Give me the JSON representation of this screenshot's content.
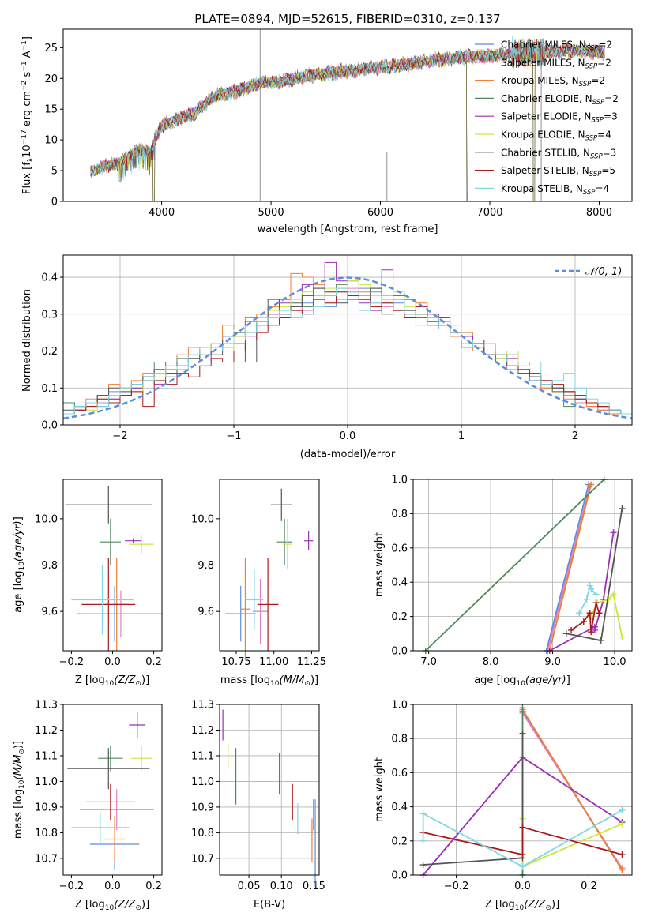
{
  "chart_data": [
    {
      "id": "spectrum",
      "type": "line",
      "title": "PLATE=0894, MJD=52615, FIBERID=0310, z=0.137",
      "xlabel": "wavelength [Angstrom, rest frame]",
      "ylabel": "Flux [f",
      "ylabel_sub": "λ",
      "ylabel_rest": "10",
      "ylabel_sup1": "−17",
      "ylabel_rest2": " erg cm",
      "ylabel_sup2": "−2",
      "ylabel_rest3": " s",
      "ylabel_sup3": "−1",
      "ylabel_rest4": " A",
      "ylabel_sup4": "−1",
      "ylabel_end": "]",
      "xlim": [
        3100,
        8300
      ],
      "ylim": [
        0,
        28
      ],
      "xticks": [
        4000,
        5000,
        6000,
        7000,
        8000
      ],
      "yticks": [
        0,
        5,
        10,
        15,
        20,
        25
      ],
      "continuum_x": [
        3350,
        3500,
        3600,
        3700,
        3800,
        3900,
        3950,
        4000,
        4100,
        4200,
        4300,
        4400,
        4500,
        4700,
        4900,
        5100,
        5300,
        5600,
        5900,
        6200,
        6500,
        6800,
        7100,
        7400,
        7700,
        8000,
        8050
      ],
      "continuum_y": [
        4.8,
        5.8,
        6.2,
        7.3,
        8.5,
        8.0,
        10.5,
        12.3,
        13.0,
        13.8,
        14.3,
        16.0,
        17.2,
        18.0,
        19.2,
        19.5,
        20.3,
        21.0,
        21.6,
        22.2,
        23.0,
        23.5,
        23.8,
        24.2,
        24.5,
        24.3,
        24.2
      ],
      "gaps": [
        [
          3920,
          3935
        ],
        [
          6790,
          6800
        ],
        [
          7395,
          7410
        ]
      ],
      "spikes": [
        [
          4900,
          28
        ],
        [
          6060,
          8
        ],
        [
          7470,
          26
        ]
      ],
      "legend": [
        "Chabrier MILES, N",
        "Salpeter MILES, N",
        "Kroupa MILES, N",
        "Chabrier ELODIE, N",
        "Salpeter ELODIE, N",
        "Kroupa ELODIE, N",
        "Chabrier STELIB, N",
        "Salpeter STELIB, N",
        "Kroupa STELIB, N"
      ],
      "legend_sub": "SSP",
      "legend_n": [
        "=2",
        "=2",
        "=2",
        "=2",
        "=3",
        "=4",
        "=3",
        "=5",
        "=4"
      ],
      "legend_position": "right",
      "grid": false
    },
    {
      "id": "residuals",
      "type": "histogram",
      "xlabel": "(data-model)/error",
      "ylabel": "Normed distribution",
      "xlim": [
        -2.5,
        2.5
      ],
      "ylim": [
        0,
        0.46
      ],
      "xticks": [
        -2,
        -1,
        0,
        1,
        2
      ],
      "yticks": [
        0.0,
        0.1,
        0.2,
        0.3,
        0.4
      ],
      "bins_from": -2.5,
      "bin_width": 0.1,
      "bins": 50,
      "legend": [
        "𝒩(0, 1)"
      ],
      "legend_position": "top-right",
      "grid": true
    },
    {
      "id": "z_age",
      "type": "scatter",
      "xlabel": "Z [log",
      "xlabel_sub": "10",
      "xlabel_math": "(Z/Z",
      "xlabel_end": ")]",
      "ylabel": "age  [log",
      "ylabel_sub": "10",
      "ylabel_math": "(age/yr)",
      "ylabel_end": "]",
      "xlim": [
        -0.24,
        0.24
      ],
      "ylim": [
        9.43,
        10.17
      ],
      "xticks": [
        -0.2,
        0.0,
        0.2
      ],
      "yticks": [
        9.6,
        9.8,
        10.0
      ],
      "grid": false
    },
    {
      "id": "mass_age",
      "type": "scatter",
      "xlabel": "mass [log",
      "xlabel_sub": "10",
      "xlabel_math": "(M/M",
      "xlabel_end": ")]",
      "xlim": [
        10.64,
        11.3
      ],
      "ylim": [
        9.43,
        10.17
      ],
      "xticks": [
        10.75,
        11.0,
        11.25
      ],
      "yticks": [
        9.6,
        9.8,
        10.0
      ],
      "grid": false
    },
    {
      "id": "age_weight",
      "type": "line",
      "xlabel": "age  [log",
      "xlabel_sub": "10",
      "xlabel_math": "(age/yr)",
      "xlabel_end": "]",
      "ylabel": "mass weight",
      "xlim": [
        6.75,
        10.28
      ],
      "ylim": [
        0,
        1
      ],
      "xticks": [
        7,
        8,
        9,
        10
      ],
      "yticks": [
        0.0,
        0.2,
        0.4,
        0.6,
        0.8,
        1.0
      ],
      "grid": true
    },
    {
      "id": "z_mass",
      "type": "scatter",
      "xlabel": "Z [log",
      "xlabel_sub": "10",
      "xlabel_math": "(Z/Z",
      "xlabel_end": ")]",
      "ylabel": "mass [log",
      "ylabel_sub": "10",
      "ylabel_math": "(M/M",
      "ylabel_end": ")]",
      "xlim": [
        -0.24,
        0.24
      ],
      "ylim": [
        10.635,
        11.3
      ],
      "xticks": [
        -0.2,
        0.0,
        0.2
      ],
      "yticks": [
        10.7,
        10.8,
        10.9,
        11.0,
        11.1,
        11.2,
        11.3
      ],
      "grid": false
    },
    {
      "id": "ebv_mass",
      "type": "scatter",
      "xlabel": "E(B-V)",
      "xlim": [
        0.005,
        0.158
      ],
      "ylim": [
        10.635,
        11.3
      ],
      "xticks": [
        0.05,
        0.1,
        0.15
      ],
      "yticks": [
        10.7,
        10.8,
        10.9,
        11.0,
        11.1,
        11.2,
        11.3
      ],
      "grid": true
    },
    {
      "id": "z_weight",
      "type": "line",
      "xlabel": "Z [log",
      "xlabel_sub": "10",
      "xlabel_math": "(Z/Z",
      "xlabel_end": ")]",
      "ylabel": "mass weight",
      "xlim": [
        -0.33,
        0.33
      ],
      "ylim": [
        0,
        1
      ],
      "xticks": [
        -0.2,
        0.0,
        0.2
      ],
      "yticks": [
        0.0,
        0.2,
        0.4,
        0.6,
        0.8,
        1.0
      ],
      "grid": true
    }
  ],
  "series": [
    {
      "name": "Chabrier MILES",
      "color": "#5b8ede",
      "hist": [
        0.03,
        0.05,
        0.06,
        0.07,
        0.09,
        0.08,
        0.1,
        0.13,
        0.14,
        0.15,
        0.17,
        0.19,
        0.21,
        0.2,
        0.24,
        0.23,
        0.25,
        0.28,
        0.27,
        0.3,
        0.31,
        0.33,
        0.34,
        0.32,
        0.36,
        0.35,
        0.37,
        0.36,
        0.34,
        0.33,
        0.31,
        0.3,
        0.28,
        0.27,
        0.25,
        0.24,
        0.22,
        0.2,
        0.18,
        0.16,
        0.15,
        0.12,
        0.11,
        0.09,
        0.08,
        0.07,
        0.06,
        0.05,
        0.04,
        0.03
      ],
      "za": {
        "x": 0.01,
        "xerr": 0.18,
        "y": 9.59,
        "yerr": 0.12
      },
      "ma": {
        "x": 10.78,
        "xerr": 0.1,
        "y": 9.59,
        "yerr": 0.12
      },
      "zm": {
        "x": 0.01,
        "xerr": 0.12,
        "y": 10.755,
        "yerr": 0.1
      },
      "ebv": {
        "x": 0.152,
        "y": 10.76,
        "yerr": 0.17
      },
      "aw_x": [
        8.9,
        9.58
      ],
      "aw_y": [
        0.0,
        0.97
      ],
      "zw_x": [
        0.0,
        0.3
      ],
      "zw_y": [
        0.96,
        0.03
      ]
    },
    {
      "name": "Salpeter MILES",
      "color": "#e07fc0",
      "hist": [
        0.03,
        0.04,
        0.07,
        0.06,
        0.08,
        0.09,
        0.11,
        0.12,
        0.15,
        0.14,
        0.16,
        0.18,
        0.2,
        0.21,
        0.23,
        0.25,
        0.24,
        0.27,
        0.29,
        0.3,
        0.33,
        0.31,
        0.35,
        0.33,
        0.34,
        0.37,
        0.35,
        0.33,
        0.32,
        0.34,
        0.3,
        0.29,
        0.27,
        0.26,
        0.24,
        0.22,
        0.21,
        0.19,
        0.17,
        0.15,
        0.14,
        0.13,
        0.1,
        0.1,
        0.08,
        0.06,
        0.05,
        0.04,
        0.04,
        0.03
      ],
      "za": {
        "x": 0.04,
        "xerr": 0.2,
        "y": 9.59,
        "yerr": 0.1
      },
      "ma": {
        "x": 10.91,
        "xerr": 0.05,
        "y": 9.6,
        "yerr": 0.14
      },
      "zm": {
        "x": 0.02,
        "xerr": 0.18,
        "y": 10.89,
        "yerr": 0.08
      },
      "ebv": {
        "x": 0.149,
        "y": 10.87,
        "yerr": 0.06
      },
      "aw_x": [
        8.92,
        9.6
      ],
      "aw_y": [
        0.0,
        0.96
      ],
      "zw_x": [
        0.0,
        0.3
      ],
      "zw_y": [
        0.95,
        0.04
      ]
    },
    {
      "name": "Kroupa MILES",
      "color": "#f07f2f",
      "hist": [
        0.03,
        0.05,
        0.06,
        0.08,
        0.11,
        0.1,
        0.12,
        0.14,
        0.15,
        0.17,
        0.19,
        0.21,
        0.2,
        0.22,
        0.27,
        0.26,
        0.29,
        0.3,
        0.32,
        0.34,
        0.41,
        0.4,
        0.38,
        0.36,
        0.37,
        0.39,
        0.36,
        0.32,
        0.35,
        0.31,
        0.3,
        0.33,
        0.3,
        0.28,
        0.24,
        0.25,
        0.2,
        0.22,
        0.19,
        0.17,
        0.14,
        0.13,
        0.1,
        0.09,
        0.07,
        0.07,
        0.05,
        0.04,
        0.03,
        0.03
      ],
      "za": {
        "x": 0.02,
        "xerr": 0.06,
        "y": 9.63,
        "yerr": 0.2
      },
      "ma": {
        "x": 10.81,
        "xerr": 0.03,
        "y": 9.61,
        "yerr": 0.22
      },
      "zm": {
        "x": 0.01,
        "xerr": 0.05,
        "y": 10.775,
        "yerr": 0.09
      },
      "ebv": {
        "x": 0.147,
        "y": 10.77,
        "yerr": 0.085
      },
      "aw_x": [
        8.95,
        9.62
      ],
      "aw_y": [
        0.0,
        0.97
      ],
      "zw_x": [
        0.0,
        0.3
      ],
      "zw_y": [
        0.97,
        0.03
      ]
    },
    {
      "name": "Chabrier ELODIE",
      "color": "#4f8a5a",
      "hist": [
        0.06,
        0.04,
        0.05,
        0.08,
        0.07,
        0.1,
        0.09,
        0.12,
        0.17,
        0.13,
        0.18,
        0.17,
        0.19,
        0.22,
        0.21,
        0.25,
        0.28,
        0.27,
        0.3,
        0.34,
        0.33,
        0.32,
        0.37,
        0.35,
        0.38,
        0.36,
        0.34,
        0.37,
        0.33,
        0.31,
        0.3,
        0.29,
        0.27,
        0.29,
        0.23,
        0.21,
        0.23,
        0.2,
        0.18,
        0.19,
        0.15,
        0.13,
        0.12,
        0.09,
        0.05,
        0.08,
        0.06,
        0.05,
        0.04,
        0.03
      ],
      "za": {
        "x": -0.01,
        "xerr": 0.05,
        "y": 9.9,
        "yerr": 0.1
      },
      "ma": {
        "x": 11.07,
        "xerr": 0.05,
        "y": 9.9,
        "yerr": 0.1
      },
      "zm": {
        "x": -0.01,
        "xerr": 0.06,
        "y": 11.09,
        "yerr": 0.05
      },
      "ebv": {
        "x": 0.03,
        "y": 11.02,
        "yerr": 0.11
      },
      "aw_x": [
        6.95,
        9.83
      ],
      "aw_y": [
        0.0,
        1.0
      ],
      "zw_x": [
        0.0,
        0.0
      ],
      "zw_y": [
        0.0,
        0.98
      ]
    },
    {
      "name": "Salpeter ELODIE",
      "color": "#9b2fb5",
      "hist": [
        0.03,
        0.04,
        0.06,
        0.05,
        0.07,
        0.08,
        0.1,
        0.12,
        0.11,
        0.14,
        0.16,
        0.18,
        0.17,
        0.2,
        0.22,
        0.24,
        0.26,
        0.28,
        0.3,
        0.33,
        0.32,
        0.38,
        0.35,
        0.44,
        0.39,
        0.34,
        0.33,
        0.31,
        0.42,
        0.35,
        0.34,
        0.32,
        0.3,
        0.29,
        0.26,
        0.24,
        0.23,
        0.19,
        0.17,
        0.18,
        0.14,
        0.13,
        0.12,
        0.1,
        0.09,
        0.07,
        0.06,
        0.05,
        0.04,
        0.03
      ],
      "za": {
        "x": 0.1,
        "xerr": 0.04,
        "y": 9.905,
        "yerr": 0.01
      },
      "ma": {
        "x": 11.23,
        "xerr": 0.03,
        "y": 9.905,
        "yerr": 0.04
      },
      "zm": {
        "x": 0.12,
        "xerr": 0.04,
        "y": 11.22,
        "yerr": 0.05
      },
      "ebv": {
        "x": 0.01,
        "y": 11.22,
        "yerr": 0.06
      },
      "aw_x": [
        8.95,
        9.68,
        9.68,
        9.82,
        9.98
      ],
      "aw_y": [
        0.0,
        0.14,
        0.12,
        0.3,
        0.69
      ],
      "zw_x": [
        -0.3,
        0.0,
        0.3
      ],
      "zw_y": [
        0.0,
        0.69,
        0.31
      ]
    },
    {
      "name": "Kroupa ELODIE",
      "color": "#cce63a",
      "hist": [
        0.03,
        0.05,
        0.04,
        0.07,
        0.08,
        0.1,
        0.09,
        0.12,
        0.13,
        0.16,
        0.15,
        0.18,
        0.2,
        0.22,
        0.21,
        0.24,
        0.27,
        0.29,
        0.31,
        0.32,
        0.34,
        0.36,
        0.35,
        0.37,
        0.36,
        0.39,
        0.38,
        0.35,
        0.34,
        0.36,
        0.32,
        0.3,
        0.28,
        0.26,
        0.27,
        0.23,
        0.21,
        0.2,
        0.18,
        0.2,
        0.15,
        0.14,
        0.12,
        0.11,
        0.09,
        0.08,
        0.06,
        0.05,
        0.04,
        0.03
      ],
      "za": {
        "x": 0.14,
        "xerr": 0.06,
        "y": 9.89,
        "yerr": 0.04
      },
      "ma": {
        "x": 11.09,
        "xerr": 0.03,
        "y": 9.89,
        "yerr": 0.11
      },
      "zm": {
        "x": 0.14,
        "xerr": 0.05,
        "y": 11.09,
        "yerr": 0.05
      },
      "ebv": {
        "x": 0.018,
        "y": 11.1,
        "yerr": 0.05
      },
      "aw_x": [
        9.62,
        9.72,
        9.9,
        9.98,
        10.12
      ],
      "aw_y": [
        0.2,
        0.28,
        0.3,
        0.33,
        0.08
      ],
      "zw_x": [
        0.0,
        0.0,
        0.3
      ],
      "zw_y": [
        0.33,
        0.05,
        0.3
      ]
    },
    {
      "name": "Chabrier STELIB",
      "color": "#555555",
      "hist": [
        0.04,
        0.05,
        0.06,
        0.08,
        0.1,
        0.09,
        0.11,
        0.13,
        0.15,
        0.14,
        0.17,
        0.18,
        0.2,
        0.19,
        0.23,
        0.22,
        0.17,
        0.28,
        0.34,
        0.3,
        0.32,
        0.35,
        0.37,
        0.36,
        0.33,
        0.35,
        0.34,
        0.37,
        0.3,
        0.34,
        0.31,
        0.3,
        0.29,
        0.27,
        0.25,
        0.23,
        0.22,
        0.19,
        0.17,
        0.16,
        0.14,
        0.13,
        0.11,
        0.1,
        0.09,
        0.07,
        0.06,
        0.05,
        0.04,
        0.03
      ],
      "za": {
        "x": -0.02,
        "xerr": 0.21,
        "y": 10.06,
        "yerr": 0.08
      },
      "ma": {
        "x": 11.05,
        "xerr": 0.07,
        "y": 10.06,
        "yerr": 0.07
      },
      "zm": {
        "x": -0.02,
        "xerr": 0.2,
        "y": 11.05,
        "yerr": 0.08
      },
      "ebv": {
        "x": 0.097,
        "y": 11.03,
        "yerr": 0.08
      },
      "aw_x": [
        9.22,
        9.78,
        10.12
      ],
      "aw_y": [
        0.1,
        0.06,
        0.83
      ],
      "zw_x": [
        -0.3,
        0.0,
        0.0
      ],
      "zw_y": [
        0.06,
        0.1,
        0.83
      ]
    },
    {
      "name": "Salpeter STELIB",
      "color": "#aa1a1a",
      "hist": [
        0.03,
        0.04,
        0.05,
        0.07,
        0.06,
        0.08,
        0.09,
        0.05,
        0.12,
        0.11,
        0.14,
        0.13,
        0.16,
        0.18,
        0.17,
        0.2,
        0.23,
        0.25,
        0.27,
        0.29,
        0.31,
        0.3,
        0.34,
        0.33,
        0.36,
        0.35,
        0.34,
        0.32,
        0.33,
        0.31,
        0.29,
        0.32,
        0.28,
        0.26,
        0.25,
        0.23,
        0.22,
        0.2,
        0.19,
        0.17,
        0.15,
        0.14,
        0.12,
        0.11,
        0.09,
        0.08,
        0.06,
        0.05,
        0.04,
        0.03
      ],
      "za": {
        "x": -0.02,
        "xerr": 0.13,
        "y": 9.63,
        "yerr": 0.2
      },
      "ma": {
        "x": 10.96,
        "xerr": 0.07,
        "y": 9.63,
        "yerr": 0.2
      },
      "zm": {
        "x": -0.01,
        "xerr": 0.12,
        "y": 10.92,
        "yerr": 0.07
      },
      "ebv": {
        "x": 0.117,
        "y": 10.92,
        "yerr": 0.07
      },
      "aw_x": [
        9.3,
        9.5,
        9.6,
        9.62,
        9.7,
        9.75
      ],
      "aw_y": [
        0.12,
        0.17,
        0.22,
        0.11,
        0.28,
        0.22
      ],
      "zw_x": [
        -0.3,
        0.0,
        0.0,
        0.3
      ],
      "zw_y": [
        0.25,
        0.12,
        0.28,
        0.12
      ]
    },
    {
      "name": "Kroupa STELIB",
      "color": "#7fd8e0",
      "hist": [
        0.03,
        0.05,
        0.06,
        0.05,
        0.08,
        0.1,
        0.11,
        0.12,
        0.14,
        0.16,
        0.15,
        0.19,
        0.21,
        0.2,
        0.22,
        0.23,
        0.25,
        0.28,
        0.29,
        0.31,
        0.29,
        0.3,
        0.32,
        0.35,
        0.37,
        0.36,
        0.31,
        0.33,
        0.35,
        0.34,
        0.3,
        0.27,
        0.29,
        0.26,
        0.25,
        0.23,
        0.21,
        0.22,
        0.19,
        0.17,
        0.16,
        0.17,
        0.11,
        0.12,
        0.14,
        0.1,
        0.07,
        0.06,
        0.04,
        0.03
      ],
      "za": {
        "x": -0.05,
        "xerr": 0.15,
        "y": 9.65,
        "yerr": 0.15
      },
      "ma": {
        "x": 10.87,
        "xerr": 0.06,
        "y": 9.65,
        "yerr": 0.13
      },
      "zm": {
        "x": -0.06,
        "xerr": 0.14,
        "y": 10.82,
        "yerr": 0.06
      },
      "ebv": {
        "x": 0.125,
        "y": 10.855,
        "yerr": 0.06
      },
      "aw_x": [
        9.43,
        9.55,
        9.6,
        9.62,
        9.7
      ],
      "aw_y": [
        0.22,
        0.3,
        0.38,
        0.36,
        0.33
      ],
      "zw_x": [
        -0.3,
        -0.3,
        0.0,
        0.3
      ],
      "zw_y": [
        0.2,
        0.36,
        0.05,
        0.38
      ]
    }
  ],
  "normal_color": "#5b8ede"
}
